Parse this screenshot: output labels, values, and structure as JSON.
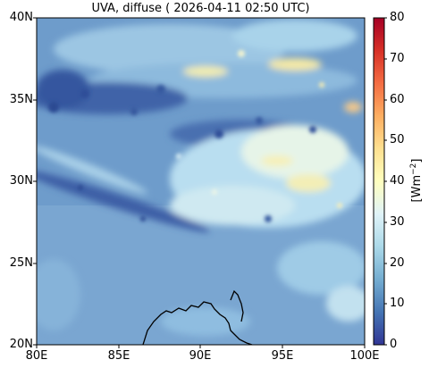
{
  "map": {
    "title": "UVA, diffuse ( 2026-04-11 02:50 UTC)",
    "lon_labels": [
      "80E",
      "85E",
      "90E",
      "95E",
      "100E"
    ],
    "lat_labels": [
      "20N",
      "25N",
      "30N",
      "35N",
      "40N"
    ],
    "lon_range": [
      80,
      100
    ],
    "lat_range": [
      20,
      40
    ]
  },
  "colorbar": {
    "unit_base": "[Wm",
    "unit_exp": "−2",
    "unit_close": "]",
    "ticks": [
      "0",
      "10",
      "20",
      "30",
      "40",
      "50",
      "60",
      "70",
      "80"
    ],
    "range": [
      0,
      80
    ],
    "colors": [
      "#313695",
      "#4575b4",
      "#74add1",
      "#abd9e9",
      "#e0f3f8",
      "#ffffbf",
      "#fee090",
      "#fdae61",
      "#f46d43",
      "#d73027",
      "#a50026"
    ]
  },
  "colors": {
    "background_field": "#6e9ccb",
    "land_field": "#7aa8d2",
    "coast": "#000000"
  }
}
